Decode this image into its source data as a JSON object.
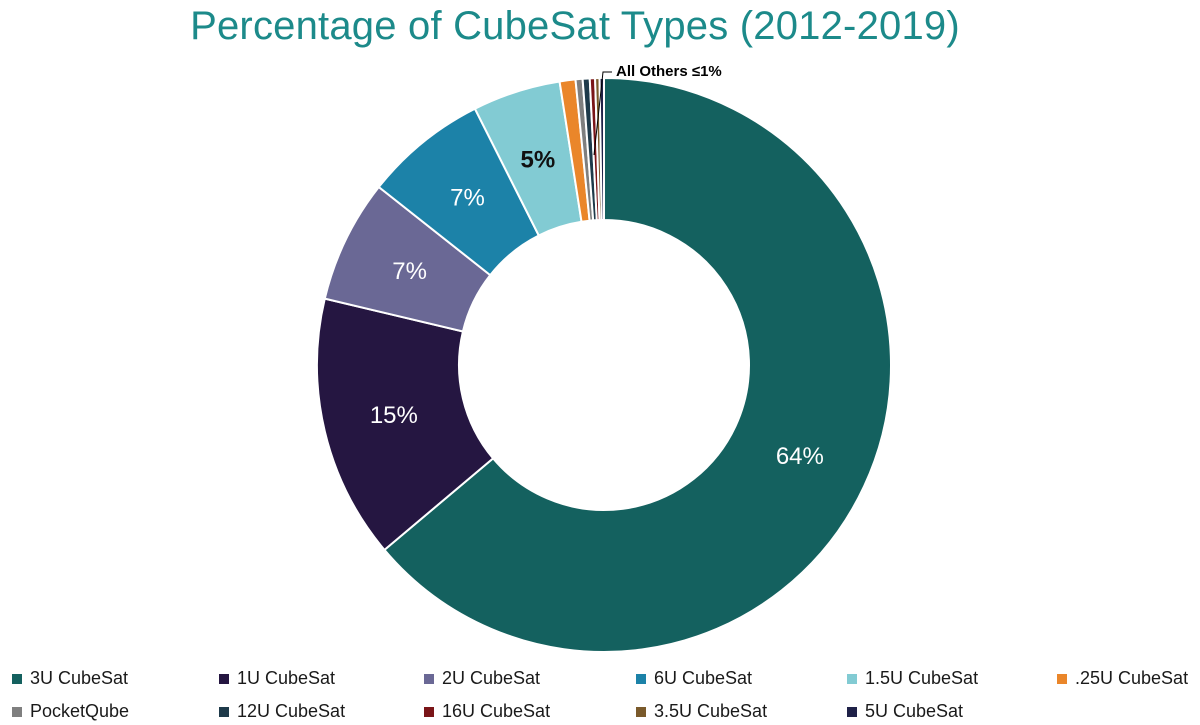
{
  "chart_data": {
    "type": "pie",
    "style": "donut",
    "title": "Percentage of CubeSat Types (2012-2019)",
    "slices": [
      {
        "label": "3U CubeSat",
        "value": 64.5,
        "display": "64%",
        "color": "#14615f"
      },
      {
        "label": "1U CubeSat",
        "value": 15,
        "display": "15%",
        "color": "#251641"
      },
      {
        "label": "2U CubeSat",
        "value": 7,
        "display": "7%",
        "color": "#6a6895"
      },
      {
        "label": "6U CubeSat",
        "value": 7,
        "display": "7%",
        "color": "#1c82a8"
      },
      {
        "label": "1.5U CubeSat",
        "value": 5,
        "display": "5%",
        "color": "#82cbd3"
      },
      {
        "label": ".25U CubeSat",
        "value": 0.9,
        "display": "",
        "color": "#ea862a"
      },
      {
        "label": "PocketQube",
        "value": 0.4,
        "display": "",
        "color": "#7f7f7f"
      },
      {
        "label": "12U CubeSat",
        "value": 0.4,
        "display": "",
        "color": "#1e3a4a"
      },
      {
        "label": "16U CubeSat",
        "value": 0.3,
        "display": "",
        "color": "#7a1518"
      },
      {
        "label": "3.5U CubeSat",
        "value": 0.25,
        "display": "",
        "color": "#7a5a2b"
      },
      {
        "label": "5U CubeSat",
        "value": 0.25,
        "display": "",
        "color": "#1f2148"
      }
    ],
    "annotation": "All Others ≤1%",
    "legend_position": "bottom"
  }
}
